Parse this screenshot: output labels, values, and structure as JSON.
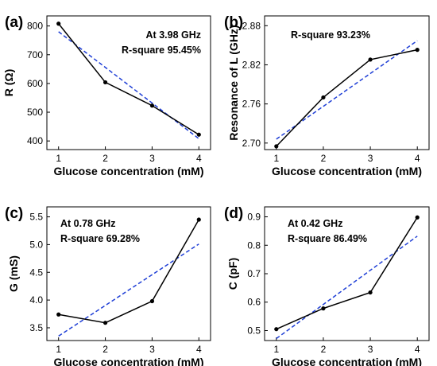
{
  "chart_data": [
    {
      "type": "line",
      "panel": "(a)",
      "ylabel": "R (Ω)",
      "xlabel": "Glucose concentration (mM)",
      "x": [
        1,
        2,
        3,
        4
      ],
      "xticks": [
        "1",
        "2",
        "3",
        "4"
      ],
      "xlim": [
        0.75,
        4.25
      ],
      "yticks": [
        "400",
        "500",
        "600",
        "700",
        "800"
      ],
      "ytick_values": [
        400,
        500,
        600,
        700,
        800
      ],
      "ylim": [
        370,
        835
      ],
      "series": [
        {
          "values": [
            808,
            604,
            523,
            422
          ]
        }
      ],
      "fit": {
        "style": "dashed",
        "color": "#1f3fd6",
        "x": [
          1,
          4
        ],
        "values": [
          780,
          408
        ]
      },
      "annotations": [
        "At 3.98 GHz",
        "R-square 95.45%"
      ]
    },
    {
      "type": "line",
      "panel": "(b)",
      "ylabel": "Resonance of L (GHz)",
      "xlabel": "Glucose concentration (mM)",
      "x": [
        1,
        2,
        3,
        4
      ],
      "xticks": [
        "1",
        "2",
        "3",
        "4"
      ],
      "xlim": [
        0.75,
        4.25
      ],
      "yticks": [
        "2.70",
        "2.76",
        "2.82",
        "2.88"
      ],
      "ytick_values": [
        2.7,
        2.76,
        2.82,
        2.88
      ],
      "ylim": [
        2.69,
        2.895
      ],
      "series": [
        {
          "values": [
            2.695,
            2.77,
            2.828,
            2.843
          ]
        }
      ],
      "fit": {
        "style": "dashed",
        "color": "#1f3fd6",
        "x": [
          1,
          4
        ],
        "values": [
          2.706,
          2.857
        ]
      },
      "annotations": [
        "R-square 93.23%"
      ]
    },
    {
      "type": "line",
      "panel": "(c)",
      "ylabel": "G (mS)",
      "xlabel": "Glucose concentration (mM)",
      "x": [
        1,
        2,
        3,
        4
      ],
      "xticks": [
        "1",
        "2",
        "3",
        "4"
      ],
      "xlim": [
        0.75,
        4.25
      ],
      "yticks": [
        "3.5",
        "4.0",
        "4.5",
        "5.0",
        "5.5"
      ],
      "ytick_values": [
        3.5,
        4.0,
        4.5,
        5.0,
        5.5
      ],
      "ylim": [
        3.27,
        5.68
      ],
      "series": [
        {
          "values": [
            3.74,
            3.59,
            3.98,
            5.45
          ]
        }
      ],
      "fit": {
        "style": "dashed",
        "color": "#1f3fd6",
        "x": [
          1,
          4
        ],
        "values": [
          3.35,
          5.01
        ]
      },
      "annotations": [
        "At 0.78 GHz",
        "R-square 69.28%"
      ]
    },
    {
      "type": "line",
      "panel": "(d)",
      "ylabel": "C (pF)",
      "xlabel": "Glucose concentration (mM)",
      "x": [
        1,
        2,
        3,
        4
      ],
      "xticks": [
        "1",
        "2",
        "3",
        "4"
      ],
      "xlim": [
        0.75,
        4.25
      ],
      "yticks": [
        "0.5",
        "0.6",
        "0.7",
        "0.8",
        "0.9"
      ],
      "ytick_values": [
        0.5,
        0.6,
        0.7,
        0.8,
        0.9
      ],
      "ylim": [
        0.465,
        0.935
      ],
      "series": [
        {
          "values": [
            0.505,
            0.578,
            0.634,
            0.898
          ]
        }
      ],
      "fit": {
        "style": "dashed",
        "color": "#1f3fd6",
        "x": [
          1,
          4
        ],
        "values": [
          0.472,
          0.832
        ]
      },
      "annotations": [
        "At 0.42 GHz",
        "R-square 86.49%"
      ]
    }
  ]
}
